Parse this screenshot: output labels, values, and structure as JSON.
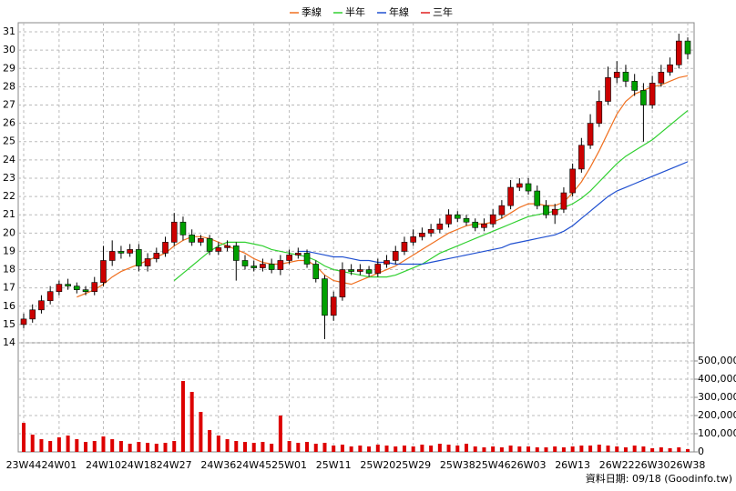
{
  "chart_data": {
    "type": "candlestick",
    "categories": [
      "23W44",
      null,
      null,
      null,
      "24W01",
      null,
      null,
      null,
      null,
      "24W10",
      null,
      null,
      null,
      "24W18",
      null,
      null,
      null,
      "24W27",
      null,
      null,
      null,
      null,
      "24W36",
      null,
      null,
      null,
      "24W45",
      null,
      null,
      null,
      "25W01",
      null,
      null,
      null,
      null,
      "25W11",
      null,
      null,
      null,
      null,
      "25W20",
      null,
      null,
      null,
      "25W29",
      null,
      null,
      null,
      null,
      "25W38",
      null,
      null,
      null,
      "25W46",
      null,
      null,
      null,
      "26W03",
      null,
      null,
      null,
      null,
      "26W13",
      null,
      null,
      null,
      null,
      "26W22",
      null,
      null,
      null,
      "26W30",
      null,
      null,
      null,
      "26W38"
    ],
    "open": [
      15.0,
      15.3,
      15.8,
      16.3,
      16.8,
      17.2,
      17.1,
      16.9,
      16.8,
      17.3,
      18.5,
      19.0,
      18.9,
      19.1,
      18.2,
      18.6,
      18.9,
      19.5,
      20.6,
      19.9,
      19.5,
      19.7,
      19.0,
      19.2,
      19.3,
      18.5,
      18.2,
      18.1,
      18.3,
      18.0,
      18.5,
      18.8,
      18.9,
      18.3,
      17.5,
      15.5,
      16.5,
      18.0,
      17.9,
      18.0,
      17.8,
      18.3,
      18.5,
      19.0,
      19.5,
      19.8,
      20.0,
      20.2,
      20.5,
      21.0,
      20.8,
      20.6,
      20.3,
      20.5,
      21.0,
      21.5,
      22.5,
      22.7,
      22.3,
      21.5,
      21.0,
      21.3,
      22.2,
      23.5,
      24.8,
      26.0,
      27.2,
      28.5,
      28.8,
      28.3,
      27.8,
      27.0,
      28.2,
      28.8,
      29.2,
      30.5
    ],
    "high": [
      15.6,
      16.1,
      16.6,
      17.1,
      17.4,
      17.5,
      17.3,
      17.1,
      17.6,
      19.3,
      19.6,
      19.3,
      19.4,
      19.4,
      18.9,
      19.2,
      19.8,
      21.1,
      20.9,
      20.2,
      19.9,
      19.9,
      19.5,
      19.6,
      19.5,
      18.8,
      18.5,
      18.6,
      18.6,
      18.8,
      19.1,
      19.2,
      19.1,
      18.5,
      17.7,
      16.8,
      18.4,
      18.3,
      18.3,
      18.2,
      18.6,
      18.8,
      19.3,
      19.8,
      20.2,
      20.3,
      20.5,
      20.8,
      21.3,
      21.2,
      21.0,
      20.8,
      20.8,
      21.3,
      21.8,
      22.9,
      23.0,
      23.0,
      22.6,
      21.8,
      21.6,
      22.5,
      23.8,
      25.2,
      26.5,
      27.8,
      29.1,
      29.4,
      29.2,
      28.7,
      28.2,
      28.6,
      29.2,
      29.6,
      30.9,
      30.7
    ],
    "low": [
      14.8,
      15.1,
      15.6,
      16.1,
      16.6,
      16.9,
      16.7,
      16.6,
      16.6,
      17.1,
      18.2,
      18.6,
      18.7,
      17.9,
      17.9,
      18.4,
      18.7,
      19.3,
      19.6,
      19.3,
      19.3,
      18.8,
      18.8,
      19.0,
      17.4,
      18.0,
      17.9,
      17.9,
      17.8,
      17.7,
      18.3,
      18.6,
      18.1,
      17.3,
      14.2,
      15.2,
      16.3,
      17.7,
      17.7,
      17.6,
      17.6,
      18.1,
      18.3,
      18.8,
      19.3,
      19.6,
      19.8,
      20.0,
      20.3,
      20.6,
      20.4,
      20.1,
      20.1,
      20.3,
      20.8,
      21.3,
      22.3,
      22.1,
      21.3,
      20.8,
      20.5,
      21.1,
      22.0,
      23.3,
      24.6,
      25.8,
      27.0,
      28.2,
      28.0,
      27.5,
      25.0,
      26.8,
      28.0,
      28.6,
      29.0,
      29.5
    ],
    "close": [
      15.3,
      15.8,
      16.3,
      16.8,
      17.2,
      17.1,
      16.9,
      16.8,
      17.3,
      18.5,
      19.0,
      18.9,
      19.1,
      18.2,
      18.6,
      18.9,
      19.5,
      20.6,
      19.9,
      19.5,
      19.7,
      19.0,
      19.2,
      19.3,
      18.5,
      18.2,
      18.1,
      18.3,
      18.0,
      18.5,
      18.8,
      18.9,
      18.3,
      17.5,
      15.5,
      16.5,
      18.0,
      17.9,
      18.0,
      17.8,
      18.3,
      18.5,
      19.0,
      19.5,
      19.8,
      20.0,
      20.2,
      20.5,
      21.0,
      20.8,
      20.6,
      20.3,
      20.5,
      21.0,
      21.5,
      22.5,
      22.7,
      22.3,
      21.5,
      21.0,
      21.3,
      22.2,
      23.5,
      24.8,
      26.0,
      27.2,
      28.5,
      28.8,
      28.3,
      27.8,
      27.0,
      28.2,
      28.8,
      29.2,
      30.5,
      29.8
    ],
    "up_color": "#cc0000",
    "down_color": "#00a000",
    "series": [
      {
        "name": "季線",
        "color": "#f07020",
        "values": [
          null,
          null,
          null,
          null,
          null,
          null,
          16.5,
          16.7,
          16.9,
          17.2,
          17.6,
          17.9,
          18.1,
          18.3,
          18.5,
          18.7,
          18.9,
          19.3,
          19.6,
          19.8,
          19.8,
          19.7,
          19.5,
          19.3,
          19.1,
          18.9,
          18.6,
          18.4,
          18.3,
          18.3,
          18.4,
          18.5,
          18.5,
          18.2,
          17.7,
          17.4,
          17.3,
          17.2,
          17.4,
          17.6,
          17.8,
          18.0,
          18.2,
          18.5,
          18.8,
          19.1,
          19.4,
          19.7,
          20.0,
          20.2,
          20.4,
          20.5,
          20.5,
          20.6,
          20.8,
          21.1,
          21.4,
          21.6,
          21.6,
          21.5,
          21.5,
          21.7,
          22.2,
          22.8,
          23.6,
          24.5,
          25.5,
          26.5,
          27.2,
          27.6,
          27.8,
          28.0,
          28.1,
          28.3,
          28.5,
          28.6
        ]
      },
      {
        "name": "半年",
        "color": "#30d030",
        "values": [
          null,
          null,
          null,
          null,
          null,
          null,
          null,
          null,
          null,
          null,
          null,
          null,
          null,
          null,
          null,
          null,
          null,
          17.4,
          17.8,
          18.2,
          18.6,
          19.0,
          19.3,
          19.5,
          19.5,
          19.5,
          19.4,
          19.3,
          19.1,
          19.0,
          18.9,
          18.8,
          18.7,
          18.5,
          18.2,
          18.0,
          17.9,
          17.8,
          17.7,
          17.6,
          17.6,
          17.6,
          17.7,
          17.9,
          18.1,
          18.3,
          18.6,
          18.9,
          19.1,
          19.3,
          19.5,
          19.7,
          19.9,
          20.1,
          20.3,
          20.5,
          20.7,
          20.9,
          21.0,
          21.1,
          21.2,
          21.4,
          21.6,
          21.9,
          22.3,
          22.8,
          23.3,
          23.8,
          24.2,
          24.5,
          24.8,
          25.1,
          25.5,
          25.9,
          26.3,
          26.7
        ]
      },
      {
        "name": "年線",
        "color": "#2050d0",
        "values": [
          null,
          null,
          null,
          null,
          null,
          null,
          null,
          null,
          null,
          null,
          null,
          null,
          null,
          null,
          null,
          null,
          null,
          null,
          null,
          null,
          null,
          null,
          null,
          null,
          null,
          null,
          null,
          null,
          null,
          null,
          null,
          19.0,
          19.0,
          18.9,
          18.8,
          18.7,
          18.7,
          18.6,
          18.5,
          18.5,
          18.4,
          18.4,
          18.3,
          18.3,
          18.3,
          18.3,
          18.4,
          18.5,
          18.6,
          18.7,
          18.8,
          18.9,
          19.0,
          19.1,
          19.2,
          19.4,
          19.5,
          19.6,
          19.7,
          19.8,
          19.9,
          20.1,
          20.4,
          20.8,
          21.2,
          21.6,
          22.0,
          22.3,
          22.5,
          22.7,
          22.9,
          23.1,
          23.3,
          23.5,
          23.7,
          23.9
        ]
      },
      {
        "name": "三年",
        "color": "#e02020"
      }
    ],
    "ylim": [
      14,
      31.5
    ],
    "yticks": [
      14,
      15,
      16,
      17,
      18,
      19,
      20,
      21,
      22,
      23,
      24,
      25,
      26,
      27,
      28,
      29,
      30,
      31
    ],
    "volume": {
      "color": "#dd0000",
      "values": [
        160000,
        95000,
        70000,
        60000,
        80000,
        90000,
        70000,
        55000,
        60000,
        85000,
        70000,
        60000,
        45000,
        55000,
        50000,
        45000,
        50000,
        60000,
        390000,
        330000,
        220000,
        120000,
        90000,
        70000,
        60000,
        55000,
        50000,
        55000,
        45000,
        200000,
        60000,
        50000,
        55000,
        45000,
        50000,
        35000,
        40000,
        30000,
        35000,
        30000,
        40000,
        35000,
        30000,
        35000,
        30000,
        40000,
        35000,
        45000,
        40000,
        35000,
        45000,
        30000,
        25000,
        30000,
        25000,
        35000,
        30000,
        30000,
        25000,
        25000,
        30000,
        25000,
        30000,
        35000,
        35000,
        40000,
        35000,
        30000,
        25000,
        35000,
        30000,
        20000,
        25000,
        20000,
        25000,
        15000
      ],
      "ylim": [
        0,
        600000
      ],
      "yticks": [
        0,
        {
          "value": 100000,
          "label": "100,000"
        },
        {
          "value": 200000,
          "label": "200,000"
        },
        {
          "value": 300000,
          "label": "300,000"
        },
        {
          "value": 400000,
          "label": "400,000"
        },
        {
          "value": 500000,
          "label": "500,000"
        }
      ]
    },
    "grid": true,
    "source": "資料日期: 09/18 (Goodinfo.tw)"
  }
}
